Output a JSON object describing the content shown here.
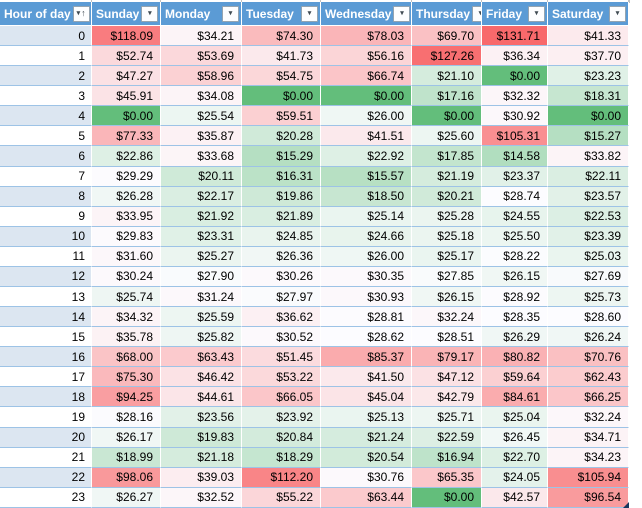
{
  "table": {
    "columns": [
      {
        "label": "Hour of day",
        "sort": "ascending"
      },
      {
        "label": "Sunday"
      },
      {
        "label": "Monday"
      },
      {
        "label": "Tuesday"
      },
      {
        "label": "Wednesday"
      },
      {
        "label": "Thursday"
      },
      {
        "label": "Friday"
      },
      {
        "label": "Saturday"
      }
    ],
    "rows": [
      {
        "hour": "0",
        "values": [
          "$118.09",
          "$34.21",
          "$74.30",
          "$78.03",
          "$69.70",
          "$131.71",
          "$41.33"
        ]
      },
      {
        "hour": "1",
        "values": [
          "$52.74",
          "$53.69",
          "$41.73",
          "$56.16",
          "$127.26",
          "$36.34",
          "$37.70"
        ]
      },
      {
        "hour": "2",
        "values": [
          "$47.27",
          "$58.96",
          "$54.75",
          "$66.74",
          "$21.10",
          "$0.00",
          "$23.23"
        ]
      },
      {
        "hour": "3",
        "values": [
          "$45.91",
          "$34.08",
          "$0.00",
          "$0.00",
          "$17.16",
          "$32.32",
          "$18.31"
        ]
      },
      {
        "hour": "4",
        "values": [
          "$0.00",
          "$25.54",
          "$59.51",
          "$26.00",
          "$0.00",
          "$30.92",
          "$0.00"
        ]
      },
      {
        "hour": "5",
        "values": [
          "$77.33",
          "$35.87",
          "$20.28",
          "$41.51",
          "$25.60",
          "$105.31",
          "$15.27"
        ]
      },
      {
        "hour": "6",
        "values": [
          "$22.86",
          "$33.68",
          "$15.29",
          "$22.92",
          "$17.85",
          "$14.58",
          "$33.82"
        ]
      },
      {
        "hour": "7",
        "values": [
          "$29.29",
          "$20.11",
          "$16.31",
          "$15.57",
          "$21.19",
          "$23.37",
          "$22.11"
        ]
      },
      {
        "hour": "8",
        "values": [
          "$26.28",
          "$22.17",
          "$19.86",
          "$18.50",
          "$20.21",
          "$28.74",
          "$23.57"
        ]
      },
      {
        "hour": "9",
        "values": [
          "$33.95",
          "$21.92",
          "$21.89",
          "$25.14",
          "$25.28",
          "$24.55",
          "$22.53"
        ]
      },
      {
        "hour": "10",
        "values": [
          "$29.83",
          "$23.31",
          "$24.85",
          "$24.66",
          "$25.18",
          "$25.50",
          "$23.39"
        ]
      },
      {
        "hour": "11",
        "values": [
          "$31.60",
          "$25.27",
          "$26.36",
          "$26.00",
          "$25.17",
          "$28.22",
          "$25.03"
        ]
      },
      {
        "hour": "12",
        "values": [
          "$30.24",
          "$27.90",
          "$30.26",
          "$30.35",
          "$27.85",
          "$26.15",
          "$27.69"
        ]
      },
      {
        "hour": "13",
        "values": [
          "$25.74",
          "$31.24",
          "$27.97",
          "$30.93",
          "$26.15",
          "$28.92",
          "$25.73"
        ]
      },
      {
        "hour": "14",
        "values": [
          "$34.32",
          "$25.59",
          "$36.62",
          "$28.81",
          "$32.24",
          "$28.35",
          "$28.60"
        ]
      },
      {
        "hour": "15",
        "values": [
          "$35.78",
          "$25.82",
          "$30.52",
          "$28.62",
          "$28.51",
          "$26.29",
          "$26.24"
        ]
      },
      {
        "hour": "16",
        "values": [
          "$68.00",
          "$63.43",
          "$51.45",
          "$85.37",
          "$79.17",
          "$80.82",
          "$70.76"
        ]
      },
      {
        "hour": "17",
        "values": [
          "$75.30",
          "$46.42",
          "$53.22",
          "$41.50",
          "$47.12",
          "$59.64",
          "$62.43"
        ]
      },
      {
        "hour": "18",
        "values": [
          "$94.25",
          "$44.61",
          "$66.05",
          "$45.04",
          "$42.79",
          "$84.61",
          "$66.25"
        ]
      },
      {
        "hour": "19",
        "values": [
          "$28.16",
          "$23.56",
          "$23.92",
          "$25.13",
          "$25.71",
          "$25.04",
          "$32.24"
        ]
      },
      {
        "hour": "20",
        "values": [
          "$26.17",
          "$19.83",
          "$20.84",
          "$21.24",
          "$22.59",
          "$26.45",
          "$34.71"
        ]
      },
      {
        "hour": "21",
        "values": [
          "$18.99",
          "$21.18",
          "$18.29",
          "$20.54",
          "$16.94",
          "$22.70",
          "$34.23"
        ]
      },
      {
        "hour": "22",
        "values": [
          "$98.06",
          "$39.03",
          "$112.20",
          "$30.76",
          "$65.35",
          "$24.05",
          "$105.94"
        ]
      },
      {
        "hour": "23",
        "values": [
          "$26.27",
          "$32.52",
          "$55.22",
          "$63.44",
          "$0.00",
          "$42.57",
          "$96.54"
        ]
      }
    ]
  },
  "icons": {
    "filter_dropdown": "▾",
    "sort_ascending": "↑"
  },
  "colors": {
    "header_bg": "#5B9BD5",
    "header_text": "#FFFFFF",
    "band": "#DCE6F1",
    "row_border": "#9DC3E6",
    "scale_low": "#63BE7B",
    "scale_mid": "#FCFCFF",
    "scale_high": "#F8696B",
    "resize_handle": "#17375E"
  }
}
